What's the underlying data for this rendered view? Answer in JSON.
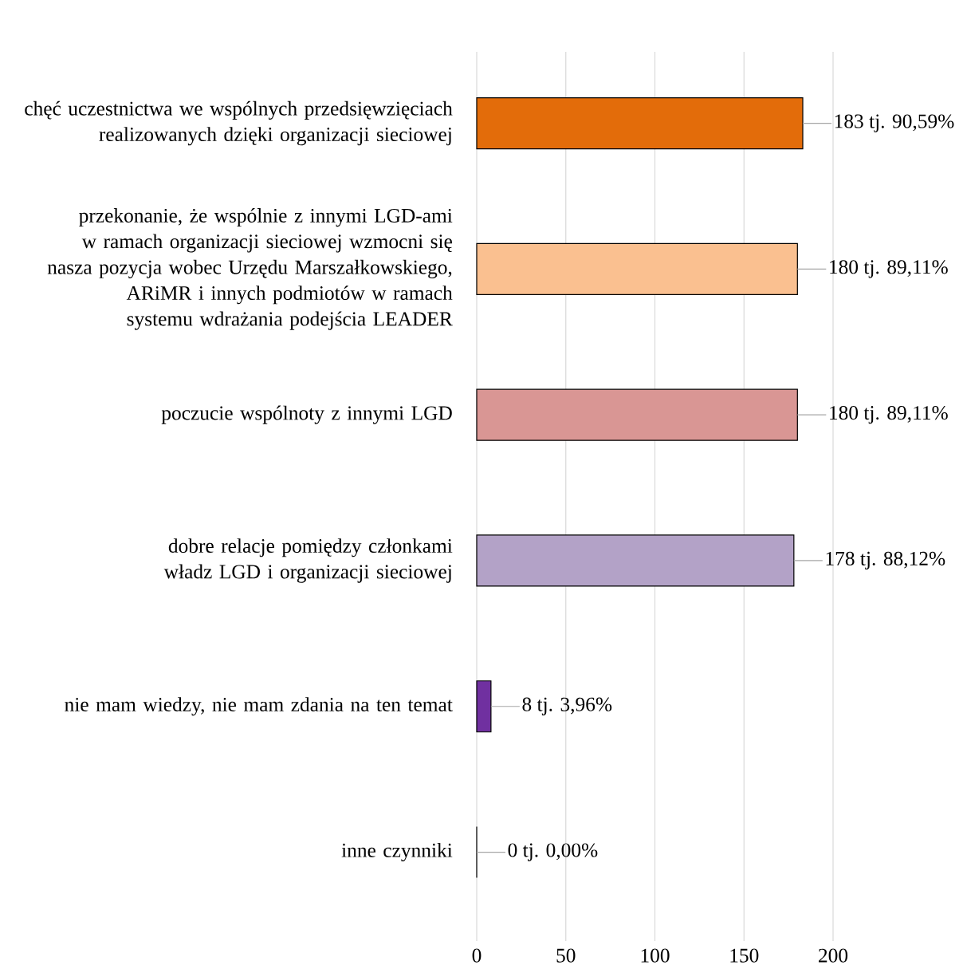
{
  "chart_data": {
    "type": "bar",
    "orientation": "horizontal",
    "categories": [
      "chęć uczestnictwa we wspólnych przedsięwzięciach realizowanych dzięki organizacji sieciowej",
      "przekonanie, że wspólnie z innymi LGD-ami w ramach organizacji sieciowej wzmocni się nasza pozycja wobec Urzędu Marszałkowskiego, ARiMR i innych podmiotów w ramach systemu wdrażania podejścia LEADER",
      "poczucie wspólnoty z innymi LGD",
      "dobre relacje pomiędzy członkami władz LGD i organizacji sieciowej",
      "nie mam wiedzy, nie mam zdania na ten temat",
      "inne czynniki"
    ],
    "values": [
      183,
      180,
      180,
      178,
      8,
      0
    ],
    "colors": [
      "#e36c0a",
      "#fac090",
      "#d99694",
      "#b3a2c7",
      "#7030a0",
      "#7030a0"
    ],
    "value_labels": [
      "183 tj. 90,59%",
      "180 tj. 89,11%",
      "180 tj. 89,11%",
      "178 tj. 88,12%",
      "8 tj. 3,96%",
      "0 tj. 0,00%"
    ],
    "xlim": [
      0,
      200
    ],
    "xticks": [
      0,
      50,
      100,
      150,
      200
    ],
    "grid": "x"
  }
}
